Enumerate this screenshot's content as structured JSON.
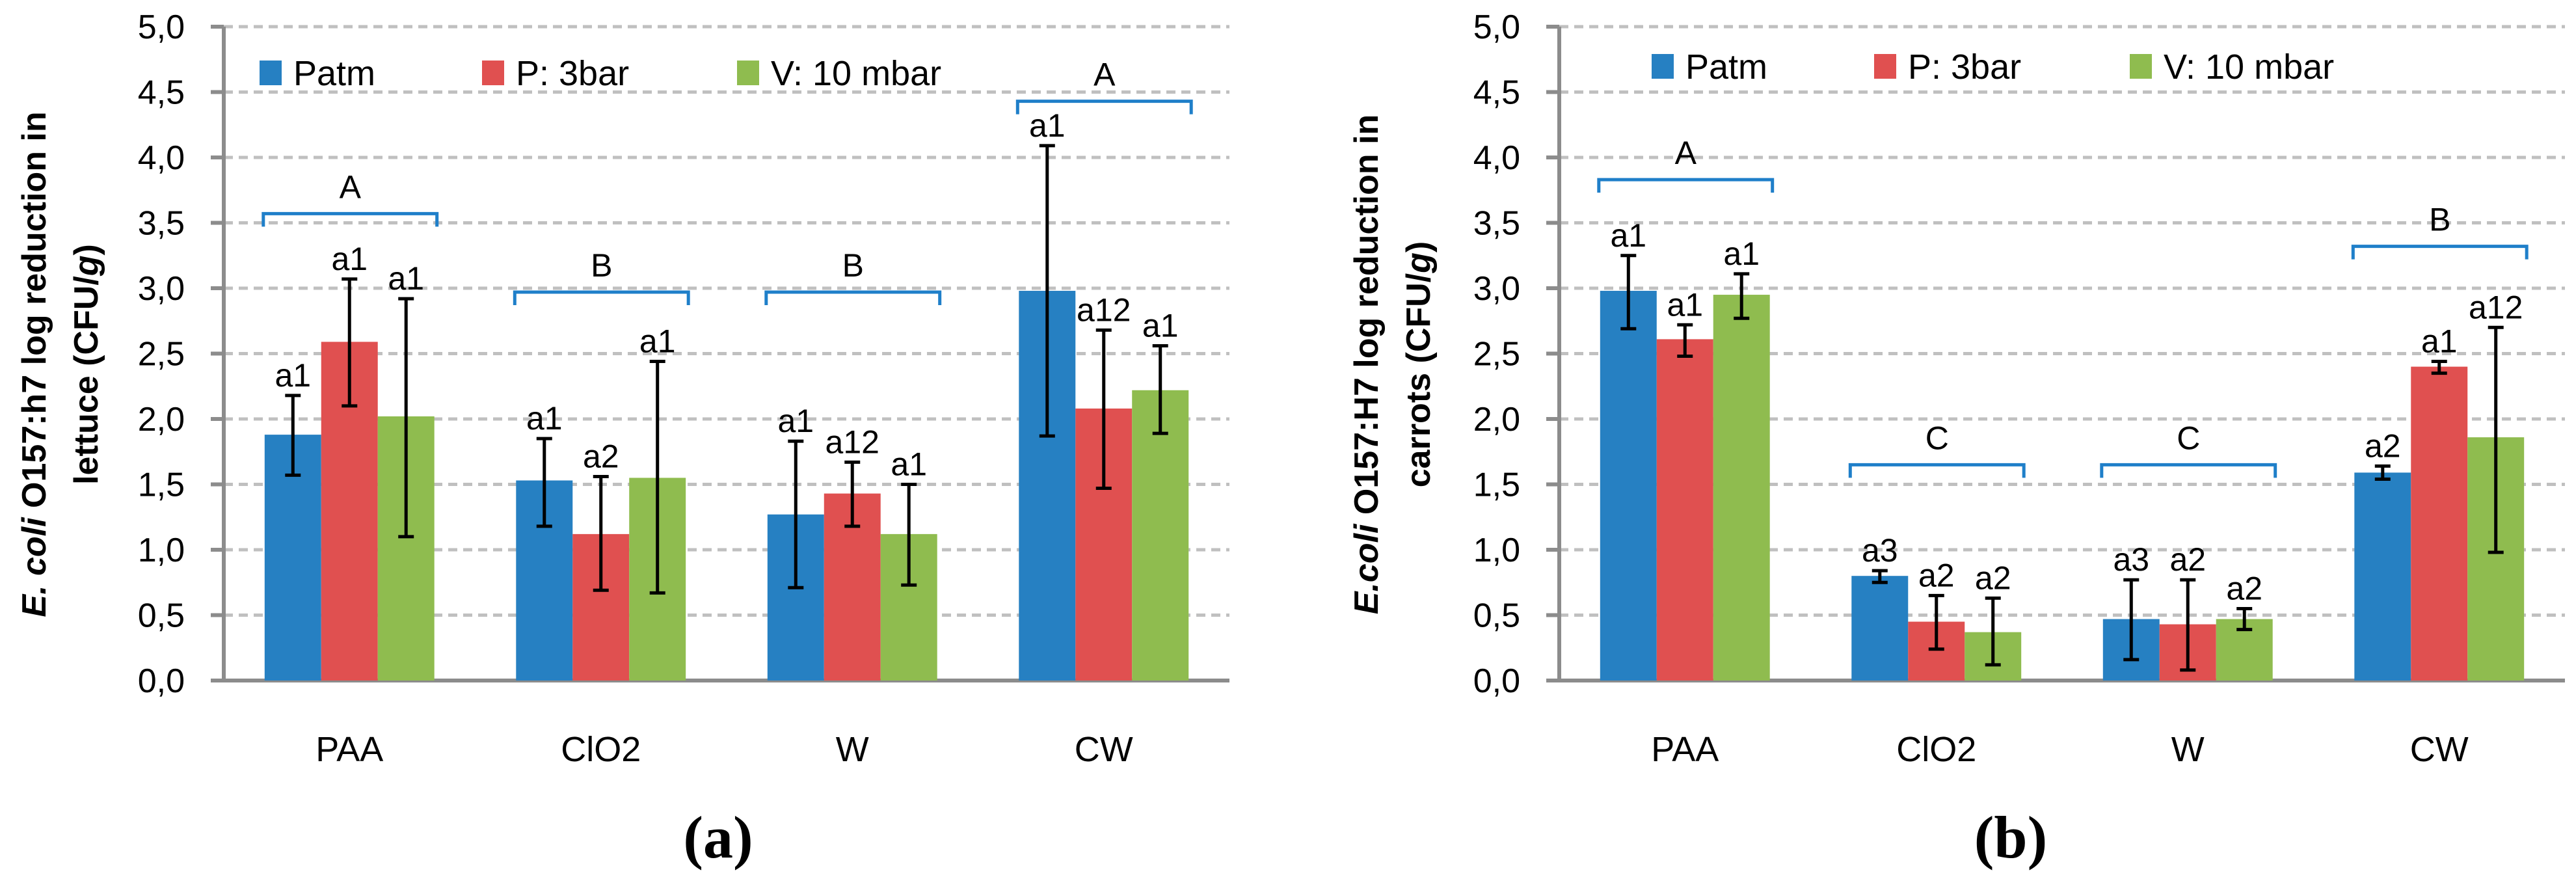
{
  "colors": {
    "Patm": "#2680c2",
    "P: 3bar": "#e05050",
    "V: 10 mbar": "#8fbc4f",
    "bracket": "#1f7fc9",
    "axis": "#8c8c8c",
    "grid": "#c0c0c0"
  },
  "chart_data": [
    {
      "type": "bar",
      "panel_label": "(a)",
      "ylabel_italic": "E. coli",
      "ylabel_line1": " O157:h7 log reduction in",
      "ylabel_line2a": "lettuce (CFU/",
      "ylabel_line2_italic": "g",
      "ylabel_line2b": ")",
      "ylim": [
        0,
        5
      ],
      "yticks": [
        "0,0",
        "0,5",
        "1,0",
        "1,5",
        "2,0",
        "2,5",
        "3,0",
        "3,5",
        "4,0",
        "4,5",
        "5,0"
      ],
      "grid": true,
      "legend": "top",
      "categories": [
        "PAA",
        "ClO2",
        "W",
        "CW"
      ],
      "series": [
        {
          "name": "Patm",
          "values": [
            1.88,
            1.53,
            1.27,
            2.98
          ],
          "err_low": [
            1.57,
            1.18,
            0.71,
            1.87
          ],
          "err_high": [
            2.18,
            1.85,
            1.83,
            4.09
          ],
          "labels": [
            "a1",
            "a1",
            "a1",
            "a1"
          ]
        },
        {
          "name": "P: 3bar",
          "values": [
            2.59,
            1.12,
            1.43,
            2.08
          ],
          "err_low": [
            2.1,
            0.69,
            1.18,
            1.47
          ],
          "err_high": [
            3.07,
            1.56,
            1.67,
            2.68
          ],
          "labels": [
            "a1",
            "a2",
            "a12",
            "a12"
          ]
        },
        {
          "name": "V: 10 mbar",
          "values": [
            2.02,
            1.55,
            1.12,
            2.22
          ],
          "err_low": [
            1.1,
            0.67,
            0.73,
            1.89
          ],
          "err_high": [
            2.92,
            2.44,
            1.5,
            2.56
          ],
          "labels": [
            "a1",
            "a1",
            "a1",
            "a1"
          ]
        }
      ],
      "group_letters": [
        "A",
        "B",
        "B",
        "A"
      ],
      "group_bracket_levels": [
        3.57,
        2.97,
        2.97,
        4.43
      ]
    },
    {
      "type": "bar",
      "panel_label": "(b)",
      "ylabel_italic": "E.coli",
      "ylabel_line1": " O157:H7  log reduction in",
      "ylabel_line2a": "carrots (CFU/",
      "ylabel_line2_italic": "g",
      "ylabel_line2b": ")",
      "ylim": [
        0,
        5
      ],
      "yticks": [
        "0,0",
        "0,5",
        "1,0",
        "1,5",
        "2,0",
        "2,5",
        "3,0",
        "3,5",
        "4,0",
        "4,5",
        "5,0"
      ],
      "grid": true,
      "legend": "top",
      "categories": [
        "PAA",
        "ClO2",
        "W",
        "CW"
      ],
      "series": [
        {
          "name": "Patm",
          "values": [
            2.98,
            0.8,
            0.47,
            1.59
          ],
          "err_low": [
            2.69,
            0.75,
            0.16,
            1.54
          ],
          "err_high": [
            3.25,
            0.84,
            0.77,
            1.64
          ],
          "labels": [
            "a1",
            "a3",
            "a3",
            "a2"
          ]
        },
        {
          "name": "P: 3bar",
          "values": [
            2.61,
            0.45,
            0.43,
            2.4
          ],
          "err_low": [
            2.48,
            0.24,
            0.08,
            2.35
          ],
          "err_high": [
            2.72,
            0.65,
            0.77,
            2.44
          ],
          "labels": [
            "a1",
            "a2",
            "a2",
            "a1"
          ]
        },
        {
          "name": "V: 10 mbar",
          "values": [
            2.95,
            0.37,
            0.47,
            1.86
          ],
          "err_low": [
            2.77,
            0.12,
            0.39,
            0.98
          ],
          "err_high": [
            3.11,
            0.63,
            0.55,
            2.7
          ],
          "labels": [
            "a1",
            "a2",
            "a2",
            "a12"
          ]
        }
      ],
      "group_letters": [
        "A",
        "C",
        "C",
        "B"
      ],
      "group_bracket_levels": [
        3.83,
        1.65,
        1.65,
        3.32
      ]
    }
  ]
}
